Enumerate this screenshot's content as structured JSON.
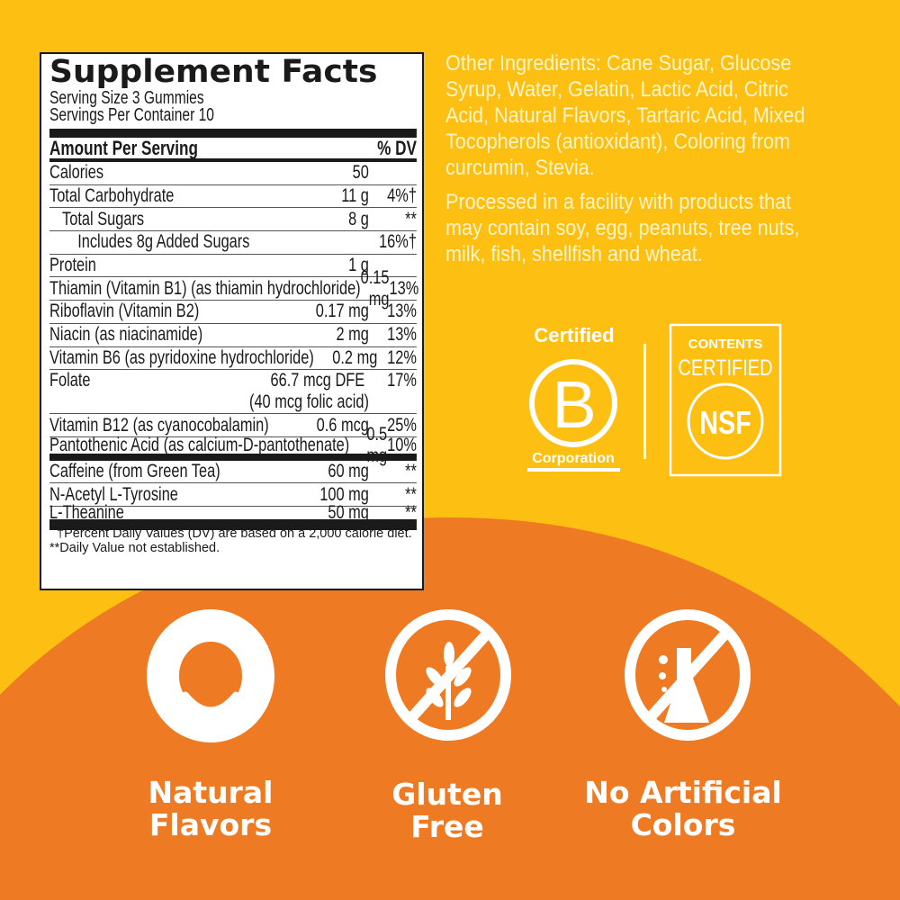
{
  "colors": {
    "background_yellow": "#FDBF12",
    "orange": "#EE7A23",
    "text_cream": "#FFF4C8"
  },
  "supplement_facts": {
    "title": "Supplement Facts",
    "serving_size": "Serving Size 3 Gummies",
    "servings_per_container": "Servings Per Container 10",
    "header": {
      "amount": "Amount Per Serving",
      "dv": "% DV"
    },
    "rows": [
      {
        "name": "Calories",
        "amount": "50",
        "dv": ""
      },
      {
        "name": "Total Carbohydrate",
        "amount": "11 g",
        "dv": "4%†"
      },
      {
        "name": "Total Sugars",
        "amount": "8 g",
        "dv": "**"
      },
      {
        "name": "Includes 8g Added Sugars",
        "amount": "",
        "dv": "16%†"
      },
      {
        "name": "Protein",
        "amount": "1 g",
        "dv": ""
      },
      {
        "name": "Thiamin (Vitamin B1) (as thiamin hydrochloride)",
        "amount": "0.15 mg",
        "dv": "13%"
      },
      {
        "name": "Riboflavin (Vitamin B2)",
        "amount": "0.17 mg",
        "dv": "13%"
      },
      {
        "name": "Niacin (as niacinamide)",
        "amount": "2 mg",
        "dv": "13%"
      },
      {
        "name": "Vitamin B6 (as pyridoxine hydrochloride)",
        "amount": "0.2 mg",
        "dv": "12%"
      },
      {
        "name": "Folate",
        "amount": "66.7 mcg DFE",
        "amount2": "(40 mcg folic acid)",
        "dv": "17%"
      },
      {
        "name": "Vitamin B12 (as cyanocobalamin)",
        "amount": "0.6 mcg",
        "dv": "25%"
      },
      {
        "name": "Pantothenic Acid (as calcium-D-pantothenate)",
        "amount": "0.5 mg",
        "dv": "10%"
      },
      {
        "name": "Caffeine (from Green Tea)",
        "amount": "60 mg",
        "dv": "**"
      },
      {
        "name": "N-Acetyl L-Tyrosine",
        "amount": "100 mg",
        "dv": "**"
      },
      {
        "name": "L-Theanine",
        "amount": "50 mg",
        "dv": "**"
      }
    ],
    "footnote1": "†Percent Daily Values (DV) are based on a 2,000 calorie diet.",
    "footnote2": "**Daily Value not established."
  },
  "other_ingredients": "Other Ingredients: Cane Sugar, Glucose Syrup, Water, Gelatin, Lactic Acid, Citric Acid, Natural Flavors, Tartaric Acid, Mixed Tocopherols (antioxidant), Coloring from curcumin, Stevia.",
  "allergen_statement": "Processed in a facility with products that may contain soy, egg, peanuts, tree nuts, milk, fish, shellfish and wheat.",
  "certifications": {
    "bcorp": {
      "top": "Certified",
      "letter": "B",
      "bottom": "Corporation"
    },
    "nsf": {
      "line1": "CONTENTS",
      "line2": "CERTIFIED",
      "mark": "NSF"
    }
  },
  "features": [
    {
      "icon": "smile-icon",
      "line1": "Natural",
      "line2": "Flavors"
    },
    {
      "icon": "no-wheat-icon",
      "line1": "Gluten",
      "line2": "Free"
    },
    {
      "icon": "no-flask-icon",
      "line1": "No Artificial",
      "line2": "Colors"
    }
  ]
}
